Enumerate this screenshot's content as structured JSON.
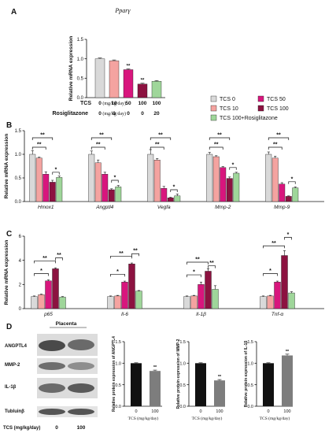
{
  "colors": {
    "TCS 0": "#d9d9d9",
    "TCS 10": "#f4a3a0",
    "TCS 50": "#d8167d",
    "TCS 100": "#8c1240",
    "TCS 100+Rosiglitazone": "#9fd69a",
    "black_bar": "#111111",
    "grey_bar": "#7d7d7d"
  },
  "panel_letters": [
    "A",
    "B",
    "C",
    "D"
  ],
  "legend": {
    "position": "right of panel A",
    "items": [
      "TCS 0",
      "TCS 50",
      "TCS 10",
      "TCS 100",
      "TCS 100+Rosiglitazone"
    ]
  },
  "panel_a_table": {
    "row1_label": "TCS",
    "row1_unit": "(mg/kg/day)",
    "row1_values": [
      "0",
      "10",
      "50",
      "100",
      "100"
    ],
    "row2_label": "Rosiglitazone",
    "row2_unit": "(mg/kg/day)",
    "row2_values": [
      "0",
      "0",
      "0",
      "0",
      "20"
    ]
  },
  "blot": {
    "title": "Placenta",
    "proteins": [
      "ANGPTL4",
      "MMP-2",
      "IL-1β",
      "Tubluinβ"
    ],
    "xlabel": "TCS (mg/kg/day)",
    "lanes": [
      "0",
      "100"
    ]
  },
  "chart_data": [
    {
      "panel": "A",
      "type": "bar",
      "title": "Pparγ",
      "ylabel": "Relative mRNA expression",
      "ylim": [
        0,
        1.5
      ],
      "yticks": [
        "0.0",
        "0.5",
        "1.0",
        "1.5"
      ],
      "categories": [
        "TCS 0",
        "TCS 10",
        "TCS 50",
        "TCS 100",
        "TCS 100+Rosiglitazone"
      ],
      "values": [
        1.0,
        0.95,
        0.72,
        0.35,
        0.42
      ],
      "errors": [
        0.02,
        0.02,
        0.02,
        0.02,
        0.02
      ],
      "annotations": [
        "",
        "",
        "**",
        "**",
        ""
      ]
    },
    {
      "panel": "B",
      "type": "bar",
      "ylabel": "Relative mRNA expression",
      "ylim": [
        0,
        1.5
      ],
      "yticks": [
        "0.0",
        "0.5",
        "1.0",
        "1.5"
      ],
      "categories": [
        "Hmox1",
        "Angptl4",
        "Vegfa",
        "Mmp-2",
        "Mmp-9"
      ],
      "series": [
        {
          "name": "TCS 0",
          "values": [
            1.0,
            1.0,
            1.0,
            1.0,
            1.0
          ],
          "errors": [
            0.08,
            0.07,
            0.1,
            0.04,
            0.05
          ]
        },
        {
          "name": "TCS 10",
          "values": [
            0.92,
            0.82,
            0.88,
            0.95,
            0.92
          ],
          "errors": [
            0.02,
            0.06,
            0.03,
            0.02,
            0.04
          ]
        },
        {
          "name": "TCS 50",
          "values": [
            0.58,
            0.58,
            0.28,
            0.72,
            0.37
          ],
          "errors": [
            0.05,
            0.04,
            0.04,
            0.02,
            0.03
          ]
        },
        {
          "name": "TCS 100",
          "values": [
            0.41,
            0.25,
            0.08,
            0.49,
            0.11
          ],
          "errors": [
            0.04,
            0.02,
            0.01,
            0.03,
            0.01
          ]
        },
        {
          "name": "TCS 100+Rosiglitazone",
          "values": [
            0.51,
            0.31,
            0.12,
            0.6,
            0.29
          ],
          "errors": [
            0.03,
            0.03,
            0.04,
            0.02,
            0.02
          ]
        }
      ],
      "brackets": [
        {
          "cat": 0,
          "from": 0,
          "to": 2,
          "level": 1.15,
          "label": "**"
        },
        {
          "cat": 0,
          "from": 0,
          "to": 3,
          "level": 1.35,
          "label": "**"
        },
        {
          "cat": 0,
          "from": 3,
          "to": 4,
          "level": 0.62,
          "label": "*"
        },
        {
          "cat": 1,
          "from": 0,
          "to": 2,
          "level": 1.15,
          "label": "**"
        },
        {
          "cat": 1,
          "from": 0,
          "to": 3,
          "level": 1.35,
          "label": "**"
        },
        {
          "cat": 1,
          "from": 3,
          "to": 4,
          "level": 0.45,
          "label": "*"
        },
        {
          "cat": 2,
          "from": 0,
          "to": 2,
          "level": 1.15,
          "label": "**"
        },
        {
          "cat": 2,
          "from": 0,
          "to": 3,
          "level": 1.35,
          "label": "**"
        },
        {
          "cat": 2,
          "from": 3,
          "to": 4,
          "level": 0.25,
          "label": "*"
        },
        {
          "cat": 3,
          "from": 0,
          "to": 2,
          "level": 1.15,
          "label": "**"
        },
        {
          "cat": 3,
          "from": 0,
          "to": 3,
          "level": 1.35,
          "label": "**"
        },
        {
          "cat": 3,
          "from": 3,
          "to": 4,
          "level": 0.72,
          "label": "*"
        },
        {
          "cat": 4,
          "from": 0,
          "to": 2,
          "level": 1.15,
          "label": "**"
        },
        {
          "cat": 4,
          "from": 0,
          "to": 3,
          "level": 1.35,
          "label": "**"
        },
        {
          "cat": 4,
          "from": 3,
          "to": 4,
          "level": 0.42,
          "label": "*"
        }
      ]
    },
    {
      "panel": "C",
      "type": "bar",
      "ylabel": "Relative mRNA expression",
      "ylim": [
        0,
        6
      ],
      "yticks": [
        "0",
        "2",
        "4",
        "6"
      ],
      "categories": [
        "p65",
        "Il-6",
        "Il-1β",
        "Tnf-α"
      ],
      "series": [
        {
          "name": "TCS 0",
          "values": [
            1.0,
            1.0,
            1.0,
            1.0
          ],
          "errors": [
            0.05,
            0.05,
            0.05,
            0.05
          ]
        },
        {
          "name": "TCS 10",
          "values": [
            1.15,
            1.05,
            1.05,
            1.05
          ],
          "errors": [
            0.05,
            0.05,
            0.05,
            0.05
          ]
        },
        {
          "name": "TCS 50",
          "values": [
            2.3,
            2.2,
            2.0,
            2.2
          ],
          "errors": [
            0.08,
            0.08,
            0.2,
            0.08
          ]
        },
        {
          "name": "TCS 100",
          "values": [
            3.3,
            3.7,
            3.1,
            4.4
          ],
          "errors": [
            0.08,
            0.08,
            0.2,
            0.4
          ]
        },
        {
          "name": "TCS 100+Rosiglitazone",
          "values": [
            0.95,
            1.45,
            1.6,
            1.3
          ],
          "errors": [
            0.05,
            0.05,
            0.3,
            0.1
          ]
        }
      ],
      "brackets": [
        {
          "cat": 0,
          "from": 0,
          "to": 2,
          "level": 2.9,
          "label": "*"
        },
        {
          "cat": 0,
          "from": 0,
          "to": 3,
          "level": 3.95,
          "label": "**"
        },
        {
          "cat": 0,
          "from": 3,
          "to": 4,
          "level": 4.2,
          "label": "**"
        },
        {
          "cat": 1,
          "from": 0,
          "to": 2,
          "level": 2.85,
          "label": "*"
        },
        {
          "cat": 1,
          "from": 0,
          "to": 3,
          "level": 4.35,
          "label": "**"
        },
        {
          "cat": 1,
          "from": 3,
          "to": 4,
          "level": 4.55,
          "label": "**"
        },
        {
          "cat": 2,
          "from": 0,
          "to": 2,
          "level": 2.8,
          "label": "*"
        },
        {
          "cat": 2,
          "from": 0,
          "to": 3,
          "level": 3.85,
          "label": "**"
        },
        {
          "cat": 2,
          "from": 3,
          "to": 4,
          "level": 3.55,
          "label": "**"
        },
        {
          "cat": 3,
          "from": 0,
          "to": 2,
          "level": 2.9,
          "label": "*"
        },
        {
          "cat": 3,
          "from": 0,
          "to": 3,
          "level": 5.2,
          "label": "**"
        },
        {
          "cat": 3,
          "from": 3,
          "to": 4,
          "level": 5.9,
          "label": "*"
        }
      ]
    },
    {
      "panel": "D1",
      "type": "bar",
      "ylabel": "Relative protein expression of ANGPTL4",
      "ylim": [
        0,
        1.5
      ],
      "yticks": [
        "0.0",
        "0.5",
        "1.0",
        "1.5"
      ],
      "xlabel": "TCS (mg/kg/day)",
      "categories": [
        "0",
        "100"
      ],
      "values": [
        1.0,
        0.82
      ],
      "errors": [
        0.01,
        0.02
      ],
      "colors": [
        "#111111",
        "#7d7d7d"
      ],
      "annotations": [
        "",
        "**"
      ]
    },
    {
      "panel": "D2",
      "type": "bar",
      "ylabel": "Relative protein expression of MMP-2",
      "ylim": [
        0,
        1.5
      ],
      "yticks": [
        "0.0",
        "0.5",
        "1.0",
        "1.5"
      ],
      "xlabel": "TCS (mg/kg/day)",
      "categories": [
        "0",
        "100"
      ],
      "values": [
        1.0,
        0.6
      ],
      "errors": [
        0.01,
        0.02
      ],
      "colors": [
        "#111111",
        "#7d7d7d"
      ],
      "annotations": [
        "",
        "**"
      ]
    },
    {
      "panel": "D3",
      "type": "bar",
      "ylabel": "Relative protein expression of IL-1β",
      "ylim": [
        0,
        1.5
      ],
      "yticks": [
        "0.0",
        "0.5",
        "1.0",
        "1.5"
      ],
      "xlabel": "TCS (mg/kg/day)",
      "categories": [
        "0",
        "100"
      ],
      "values": [
        1.0,
        1.18
      ],
      "errors": [
        0.01,
        0.03
      ],
      "colors": [
        "#111111",
        "#7d7d7d"
      ],
      "annotations": [
        "",
        "**"
      ]
    }
  ]
}
